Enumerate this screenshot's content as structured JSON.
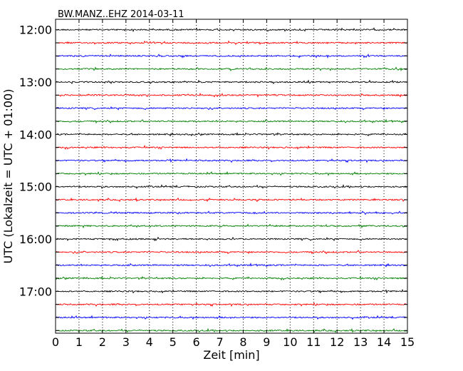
{
  "chart_data": {
    "type": "line",
    "title": "BW.MANZ..EHZ 2014-03-11",
    "xlabel": "Zeit  [min]",
    "ylabel": "UTC (Lokalzeit = UTC + 01:00)",
    "xlim": [
      0,
      15
    ],
    "x_ticks": [
      "0",
      "1",
      "2",
      "3",
      "4",
      "5",
      "6",
      "7",
      "8",
      "9",
      "10",
      "11",
      "12",
      "13",
      "14",
      "15"
    ],
    "y_tick_labels": [
      "12:00",
      "13:00",
      "14:00",
      "15:00",
      "16:00",
      "17:00"
    ],
    "y_tick_times": [
      "12:00",
      "12:15",
      "12:30",
      "12:45",
      "13:00",
      "13:15",
      "13:30",
      "13:45",
      "14:00",
      "14:15",
      "14:30",
      "14:45",
      "15:00",
      "15:15",
      "15:30",
      "15:45",
      "16:00",
      "16:15",
      "16:30",
      "16:45",
      "17:00",
      "17:15",
      "17:30",
      "17:45"
    ],
    "trace_start_times": [
      "12:00",
      "12:15",
      "12:30",
      "12:45",
      "13:00",
      "13:15",
      "13:30",
      "13:45",
      "14:00",
      "14:15",
      "14:30",
      "14:45",
      "15:00",
      "15:15",
      "15:30",
      "15:45",
      "16:00",
      "16:15",
      "16:30",
      "16:45",
      "17:00",
      "17:15",
      "17:30",
      "17:45"
    ],
    "trace_colors": [
      "#000000",
      "#ff0000",
      "#0000ff",
      "#008000"
    ],
    "grid": "vertical dotted at each minute",
    "trace_minutes": 15
  }
}
